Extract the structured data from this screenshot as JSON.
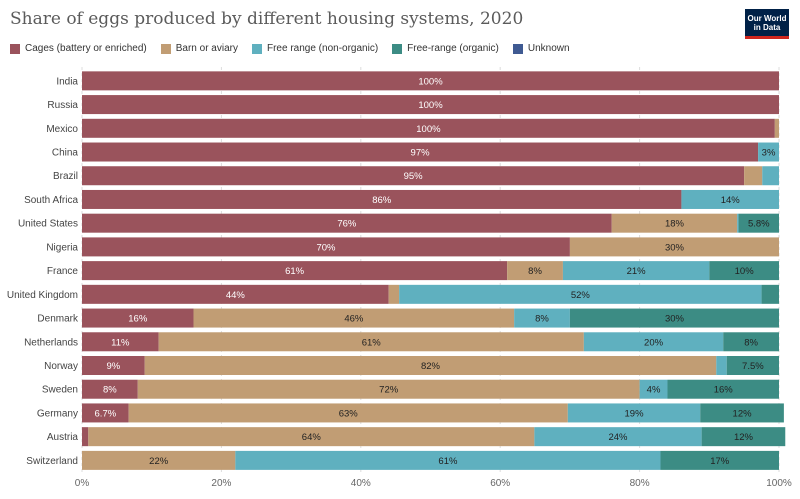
{
  "header": {
    "title": "Share of eggs produced by different housing systems, 2020",
    "logo_line1": "Our World",
    "logo_line2": "in Data"
  },
  "colors": {
    "cages": "#9a535c",
    "barn": "#c19d74",
    "free_range": "#5fb0bf",
    "organic": "#3c8c84",
    "unknown": "#3f5a92"
  },
  "legend": [
    {
      "label": "Cages (battery or enriched)",
      "color": "#9a535c"
    },
    {
      "label": "Barn or aviary",
      "color": "#c19d74"
    },
    {
      "label": "Free range (non-organic)",
      "color": "#5fb0bf"
    },
    {
      "label": "Free-range (organic)",
      "color": "#3c8c84"
    },
    {
      "label": "Unknown",
      "color": "#3f5a92"
    }
  ],
  "chart_data": {
    "type": "bar",
    "orientation": "horizontal",
    "stacked": true,
    "title": "Share of eggs produced by different housing systems, 2020",
    "xlim": [
      0,
      100
    ],
    "x_ticks": [
      "0%",
      "20%",
      "40%",
      "60%",
      "80%",
      "100%"
    ],
    "x_tick_values": [
      0,
      20,
      40,
      60,
      80,
      100
    ],
    "categories": [
      "India",
      "Russia",
      "Mexico",
      "China",
      "Brazil",
      "South Africa",
      "United States",
      "Nigeria",
      "France",
      "United Kingdom",
      "Denmark",
      "Netherlands",
      "Norway",
      "Sweden",
      "Germany",
      "Austria",
      "Switzerland"
    ],
    "series": [
      {
        "name": "Cages (battery or enriched)",
        "values": [
          100,
          100,
          99.4,
          97,
          95,
          86,
          76,
          70,
          61,
          44,
          16,
          11,
          9,
          8,
          6.7,
          0.9,
          0
        ]
      },
      {
        "name": "Barn or aviary",
        "values": [
          0,
          0,
          0.6,
          0,
          2.6,
          0,
          18,
          30,
          8,
          1.5,
          46,
          61,
          82,
          72,
          63,
          64,
          22
        ]
      },
      {
        "name": "Free range (non-organic)",
        "values": [
          0,
          0,
          0,
          3,
          2.4,
          14,
          0.2,
          0,
          21,
          52,
          8,
          20,
          1.5,
          4,
          19,
          24,
          61
        ]
      },
      {
        "name": "Free-range (organic)",
        "values": [
          0,
          0,
          0,
          0,
          0,
          0,
          5.8,
          0,
          10,
          2.5,
          30,
          8,
          7.5,
          16,
          12,
          12,
          17
        ]
      },
      {
        "name": "Unknown",
        "values": [
          0,
          0,
          0,
          0,
          0,
          0,
          0,
          0,
          0,
          0,
          0,
          0,
          0,
          0,
          0,
          0,
          0
        ]
      }
    ],
    "labels": [
      [
        "100%",
        "",
        "",
        "",
        ""
      ],
      [
        "100%",
        "",
        "",
        "",
        ""
      ],
      [
        "100%",
        "",
        "",
        "",
        ""
      ],
      [
        "97%",
        "",
        "3%",
        "",
        ""
      ],
      [
        "95%",
        "",
        "",
        "",
        ""
      ],
      [
        "86%",
        "",
        "14%",
        "",
        ""
      ],
      [
        "76%",
        "18%",
        "",
        "5.8%",
        ""
      ],
      [
        "70%",
        "30%",
        "",
        "",
        ""
      ],
      [
        "61%",
        "8%",
        "21%",
        "10%",
        ""
      ],
      [
        "44%",
        "",
        "52%",
        "",
        ""
      ],
      [
        "16%",
        "46%",
        "8%",
        "30%",
        ""
      ],
      [
        "11%",
        "61%",
        "20%",
        "8%",
        ""
      ],
      [
        "9%",
        "82%",
        "",
        "7.5%",
        ""
      ],
      [
        "8%",
        "72%",
        "4%",
        "16%",
        ""
      ],
      [
        "6.7%",
        "63%",
        "19%",
        "12%",
        ""
      ],
      [
        "",
        "64%",
        "24%",
        "12%",
        ""
      ],
      [
        "",
        "22%",
        "61%",
        "17%",
        ""
      ]
    ]
  }
}
